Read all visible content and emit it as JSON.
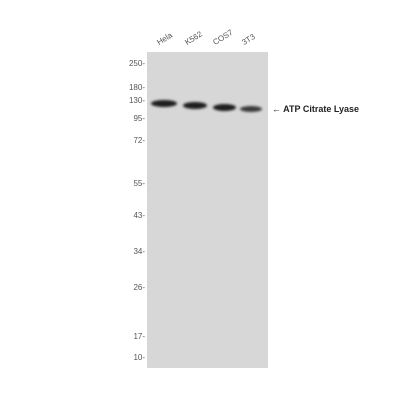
{
  "lanes": [
    "Hela",
    "K562",
    "COS7",
    "3T3"
  ],
  "markers": [
    "250-",
    "180-",
    "130-",
    "95-",
    "72-",
    "55-",
    "43-",
    "34-",
    "26-",
    "17-",
    "10-"
  ],
  "annotation": "← ATP Citrate Lyase"
}
